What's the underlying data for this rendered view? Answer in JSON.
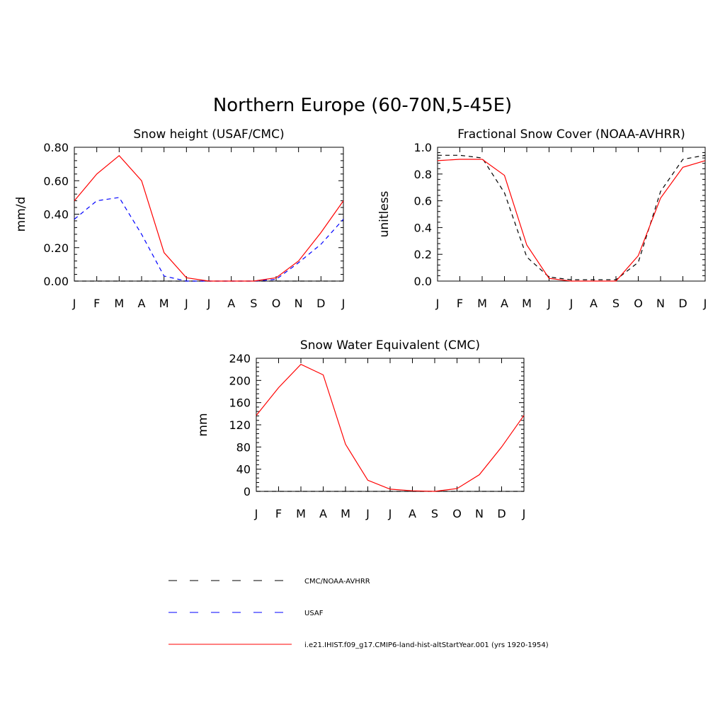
{
  "title": "Northern Europe (60-70N,5-45E)",
  "colors": {
    "model": "#ff0000",
    "obs": "#000000",
    "usaf": "#0000ff"
  },
  "chart_data": [
    {
      "type": "line",
      "title": "Snow height (USAF/CMC)",
      "ylabel": "mm/d",
      "xlabel": "",
      "categories": [
        "J",
        "F",
        "M",
        "A",
        "M",
        "J",
        "J",
        "A",
        "S",
        "O",
        "N",
        "D",
        "J"
      ],
      "ylim": [
        0,
        0.8
      ],
      "yticks": [
        "0.00",
        "0.20",
        "0.40",
        "0.60",
        "0.80"
      ],
      "series": [
        {
          "name": "CMC/NOAA-AVHRR",
          "values": [
            0,
            0,
            0,
            0,
            0,
            0,
            0,
            0,
            0,
            0,
            0,
            0,
            0
          ]
        },
        {
          "name": "USAF",
          "values": [
            0.37,
            0.48,
            0.5,
            0.28,
            0.03,
            0.0,
            0.0,
            0.0,
            0.0,
            0.01,
            0.11,
            0.22,
            0.37
          ]
        },
        {
          "name": "i.e21.IHIST.f09_g17.CMIP6-land-hist-altStartYear.001 (yrs 1920-1954)",
          "values": [
            0.48,
            0.64,
            0.75,
            0.6,
            0.17,
            0.02,
            0.0,
            0.0,
            0.0,
            0.02,
            0.12,
            0.29,
            0.48
          ]
        }
      ]
    },
    {
      "type": "line",
      "title": "Fractional Snow Cover (NOAA-AVHRR)",
      "ylabel": "unitless",
      "xlabel": "",
      "categories": [
        "J",
        "F",
        "M",
        "A",
        "M",
        "J",
        "J",
        "A",
        "S",
        "O",
        "N",
        "D",
        "J"
      ],
      "ylim": [
        0,
        1.0
      ],
      "yticks": [
        "0.0",
        "0.2",
        "0.4",
        "0.6",
        "0.8",
        "1.0"
      ],
      "series": [
        {
          "name": "CMC/NOAA-AVHRR",
          "values": [
            0.94,
            0.94,
            0.92,
            0.66,
            0.18,
            0.03,
            0.01,
            0.01,
            0.01,
            0.14,
            0.67,
            0.91,
            0.94
          ]
        },
        {
          "name": "i.e21.IHIST.f09_g17.CMIP6-land-hist-altStartYear.001 (yrs 1920-1954)",
          "values": [
            0.9,
            0.91,
            0.91,
            0.79,
            0.27,
            0.02,
            0.0,
            0.0,
            0.0,
            0.19,
            0.62,
            0.85,
            0.9
          ]
        }
      ]
    },
    {
      "type": "line",
      "title": "Snow Water Equivalent (CMC)",
      "ylabel": "mm",
      "xlabel": "",
      "categories": [
        "J",
        "F",
        "M",
        "A",
        "M",
        "J",
        "J",
        "A",
        "S",
        "O",
        "N",
        "D",
        "J"
      ],
      "ylim": [
        0,
        240
      ],
      "yticks": [
        "0",
        "40",
        "80",
        "120",
        "160",
        "200",
        "240"
      ],
      "series": [
        {
          "name": "CMC/NOAA-AVHRR",
          "values": [
            0,
            0,
            0,
            0,
            0,
            0,
            0,
            0,
            0,
            0,
            0,
            0,
            0
          ]
        },
        {
          "name": "i.e21.IHIST.f09_g17.CMIP6-land-hist-altStartYear.001 (yrs 1920-1954)",
          "values": [
            137,
            187,
            229,
            210,
            85,
            20,
            4,
            1,
            0,
            5,
            30,
            80,
            137
          ]
        }
      ]
    }
  ],
  "legend": [
    {
      "label": "CMC/NOAA-AVHRR",
      "style": "dashed",
      "color": "#000000"
    },
    {
      "label": "USAF",
      "style": "dashed",
      "color": "#0000ff"
    },
    {
      "label": "i.e21.IHIST.f09_g17.CMIP6-land-hist-altStartYear.001 (yrs 1920-1954)",
      "style": "solid",
      "color": "#ff0000"
    }
  ]
}
